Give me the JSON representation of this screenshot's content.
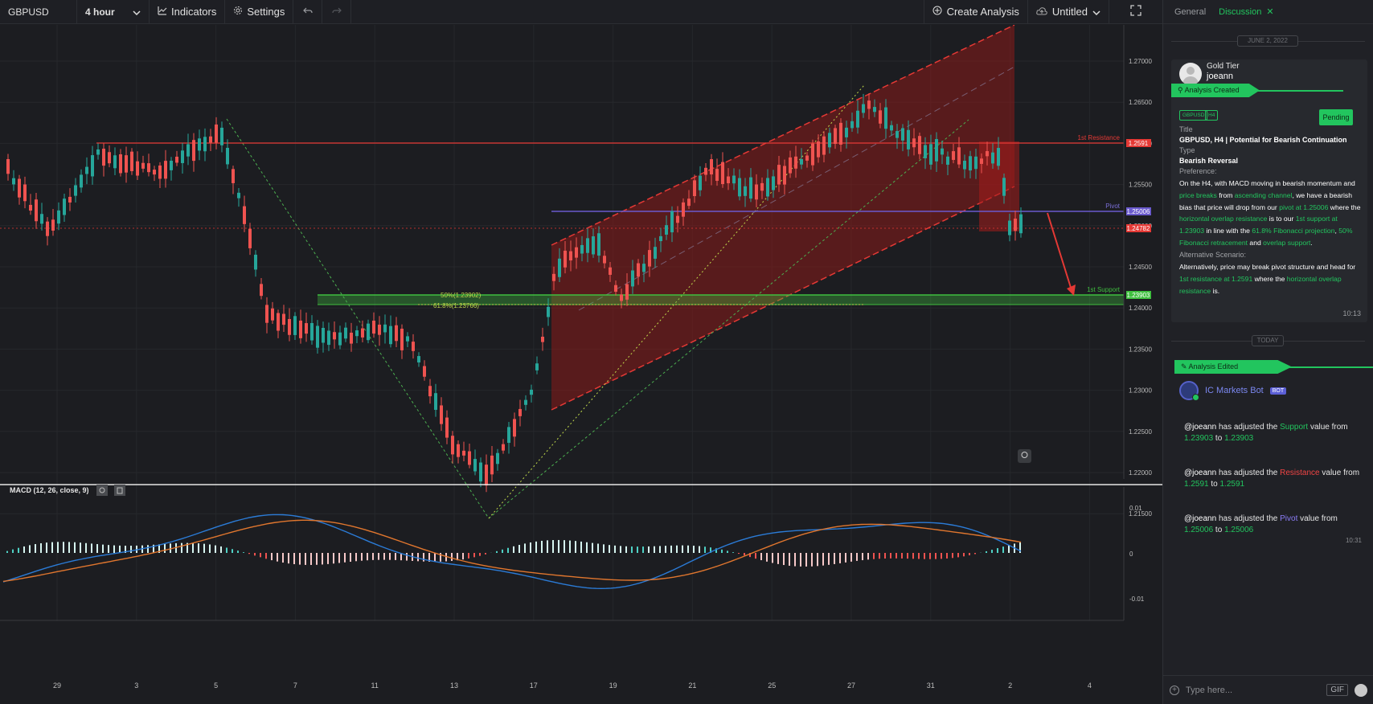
{
  "toolbar": {
    "symbol": "GBPUSD",
    "interval": "4 hour",
    "indicators_label": "Indicators",
    "settings_label": "Settings",
    "create_analysis_label": "Create Analysis",
    "layout_name": "Untitled"
  },
  "chart": {
    "price_ticks": [
      "1.27000",
      "1.26500",
      "1.26000",
      "1.25500",
      "1.25000",
      "1.24500",
      "1.24000",
      "1.23500",
      "1.23000",
      "1.22500",
      "1.22000",
      "1.21500"
    ],
    "date_ticks": [
      "29",
      "3",
      "5",
      "7",
      "11",
      "13",
      "17",
      "19",
      "21",
      "25",
      "27",
      "31",
      "2",
      "4"
    ],
    "levels": {
      "resistance": {
        "label": "1st Resistance",
        "value": "1.2591",
        "color": "#e53935"
      },
      "pivot": {
        "label": "Pivot",
        "value": "1.25006",
        "color": "#6a5acd"
      },
      "current": {
        "value": "1.24782",
        "color": "#e53935"
      },
      "support": {
        "label": "1st Support",
        "value": "1.23903",
        "color": "#3fbf3f"
      }
    },
    "fib": {
      "fib50": "50%(1.23902)",
      "fib618": "61.8%(1.23766)"
    }
  },
  "macd": {
    "title": "MACD (12, 26, close, 9)",
    "ticks": [
      "0.01",
      "0",
      "-0.01"
    ]
  },
  "panel": {
    "tabs": {
      "general": "General",
      "discussion": "Discussion"
    },
    "date_label": "JUNE 2, 2022",
    "today_label": "TODAY",
    "card": {
      "tier": "Gold Tier",
      "user": "joeann",
      "banner": "Analysis Created",
      "tags": [
        "GBPUSD",
        "H4"
      ],
      "status": "Pending",
      "title_label": "Title",
      "title": "GBPUSD, H4 | Potential for Bearish Continuation",
      "type_label": "Type",
      "type": "Bearish Reversal",
      "preference_label": "Preference:",
      "preference": {
        "t1": "On the H4, with MACD moving in bearish momentum and ",
        "g1": "price breaks",
        "t2": " from ",
        "g2": "ascending channel",
        "t3": ", we have a bearish bias that price will drop from our ",
        "g3": "pivot at 1.25006",
        "t4": " where the ",
        "g4": "horizontal overlap resistance",
        "t5": " is to our ",
        "g5": "1st support at 1.23903",
        "t6": " in line with the ",
        "g6": "61.8% Fibonacci projection",
        "t7": ", ",
        "g7": "50% Fibonacci retracement",
        "t8": " and ",
        "g8": "overlap support",
        "t9": "."
      },
      "alt_label": "Alternative Scenario:",
      "alt": {
        "t1": "Alternatively, price may break pivot structure and head for ",
        "g1": "1st resistance at 1.2591",
        "t2": " where the ",
        "g2": "horizontal overlap resistance",
        "t3": " is."
      },
      "time": "10:13"
    },
    "edited_banner": "Analysis Edited",
    "bot_name": "IC Markets Bot",
    "bot_badge": "BOT",
    "messages": [
      {
        "user": "@joeann",
        "pre": " has adjusted the ",
        "field": "Support",
        "mid": " value from ",
        "from": "1.23903",
        "to_word": " to ",
        "to": "1.23903"
      },
      {
        "user": "@joeann",
        "pre": " has adjusted the ",
        "field": "Resistance",
        "mid": " value from ",
        "from": "1.2591",
        "to_word": " to ",
        "to": "1.2591"
      },
      {
        "user": "@joeann",
        "pre": " has adjusted the ",
        "field": "Pivot",
        "mid": " value from ",
        "from": "1.25006",
        "to_word": " to ",
        "to": "1.25006"
      }
    ],
    "messages_time": "10:31",
    "input_placeholder": "Type here...",
    "gif_label": "GIF"
  }
}
